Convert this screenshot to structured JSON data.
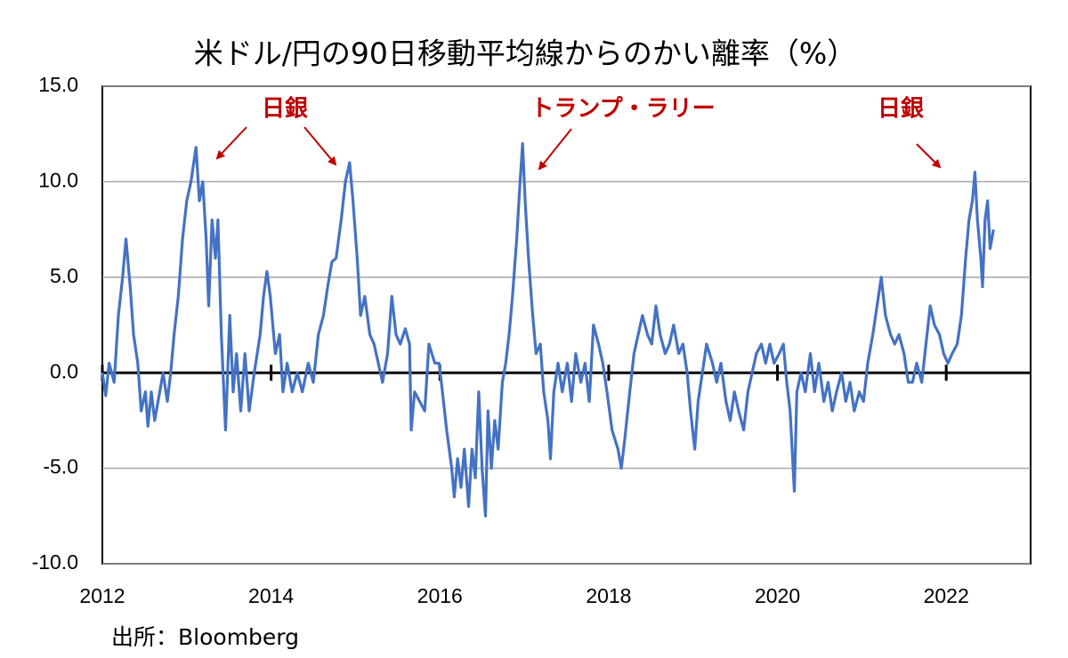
{
  "chart_data": {
    "type": "line",
    "title": "米ドル/円の90日移動平均線からのかい離率（%）",
    "source": "出所：Bloomberg",
    "annotations": [
      "日銀",
      "日銀",
      "トランプ・ラリー"
    ],
    "xlim": [
      2012,
      2023
    ],
    "xticks": [
      2012,
      2014,
      2016,
      2018,
      2020,
      2022
    ],
    "ylim": [
      -10,
      15
    ],
    "yticks": [
      {
        "value": -10,
        "label": "-10.0"
      },
      {
        "value": -5,
        "label": "-5.0"
      },
      {
        "value": 0,
        "label": "0.0"
      },
      {
        "value": 5,
        "label": "5.0"
      },
      {
        "value": 10,
        "label": "10.0"
      },
      {
        "value": 15,
        "label": "15.0"
      }
    ],
    "grid": true,
    "x": [
      2012.0,
      2012.04,
      2012.08,
      2012.14,
      2012.19,
      2012.24,
      2012.28,
      2012.33,
      2012.37,
      2012.42,
      2012.46,
      2012.51,
      2012.54,
      2012.58,
      2012.62,
      2012.66,
      2012.72,
      2012.77,
      2012.81,
      2012.85,
      2012.9,
      2012.95,
      2013.0,
      2013.05,
      2013.11,
      2013.15,
      2013.19,
      2013.23,
      2013.26,
      2013.3,
      2013.34,
      2013.37,
      2013.41,
      2013.46,
      2013.51,
      2013.55,
      2013.59,
      2013.64,
      2013.69,
      2013.74,
      2013.8,
      2013.87,
      2013.91,
      2013.95,
      2013.99,
      2014.05,
      2014.1,
      2014.14,
      2014.19,
      2014.25,
      2014.31,
      2014.37,
      2014.44,
      2014.5,
      2014.56,
      2014.62,
      2014.67,
      2014.72,
      2014.77,
      2014.83,
      2014.88,
      2014.93,
      2014.97,
      2015.02,
      2015.06,
      2015.11,
      2015.17,
      2015.22,
      2015.27,
      2015.32,
      2015.38,
      2015.43,
      2015.48,
      2015.53,
      2015.59,
      2015.64,
      2015.66,
      2015.7,
      2015.76,
      2015.82,
      2015.87,
      2015.94,
      2015.99,
      2016.03,
      2016.08,
      2016.14,
      2016.17,
      2016.21,
      2016.25,
      2016.29,
      2016.34,
      2016.38,
      2016.42,
      2016.46,
      2016.5,
      2016.54,
      2016.57,
      2016.61,
      2016.65,
      2016.69,
      2016.74,
      2016.78,
      2016.82,
      2016.86,
      2016.91,
      2016.95,
      2016.98,
      2017.01,
      2017.05,
      2017.1,
      2017.14,
      2017.19,
      2017.23,
      2017.28,
      2017.31,
      2017.35,
      2017.4,
      2017.45,
      2017.51,
      2017.56,
      2017.61,
      2017.67,
      2017.72,
      2017.77,
      2017.82,
      2017.88,
      2017.93,
      2017.98,
      2018.04,
      2018.11,
      2018.15,
      2018.19,
      2018.25,
      2018.3,
      2018.35,
      2018.4,
      2018.46,
      2018.51,
      2018.56,
      2018.61,
      2018.67,
      2018.72,
      2018.77,
      2018.83,
      2018.88,
      2018.93,
      2018.97,
      2019.02,
      2019.06,
      2019.11,
      2019.16,
      2019.23,
      2019.28,
      2019.33,
      2019.39,
      2019.44,
      2019.49,
      2019.54,
      2019.6,
      2019.65,
      2019.7,
      2019.75,
      2019.81,
      2019.86,
      2019.91,
      2019.96,
      2020.02,
      2020.07,
      2020.11,
      2020.15,
      2020.2,
      2020.23,
      2020.28,
      2020.33,
      2020.39,
      2020.44,
      2020.49,
      2020.55,
      2020.6,
      2020.65,
      2020.7,
      2020.76,
      2020.81,
      2020.86,
      2020.91,
      2020.97,
      2021.02,
      2021.07,
      2021.13,
      2021.18,
      2021.23,
      2021.28,
      2021.34,
      2021.39,
      2021.44,
      2021.5,
      2021.55,
      2021.6,
      2021.65,
      2021.71,
      2021.76,
      2021.81,
      2021.86,
      2021.92,
      2021.97,
      2022.02,
      2022.07,
      2022.13,
      2022.18,
      2022.23,
      2022.27,
      2022.31,
      2022.34,
      2022.37,
      2022.41,
      2022.43,
      2022.46,
      2022.49,
      2022.52,
      2022.56
    ],
    "series": [
      {
        "name": "かい離率",
        "color": "#4472c4",
        "values": [
          0,
          -1.2,
          0.5,
          -0.5,
          3,
          5,
          7,
          4.5,
          2,
          0.5,
          -2,
          -1,
          -2.8,
          -1,
          -2.5,
          -1.5,
          0,
          -1.5,
          0,
          2,
          4,
          7,
          9,
          10,
          11.8,
          9,
          10,
          7,
          3.5,
          8,
          6,
          8,
          2,
          -3,
          3,
          -1,
          1,
          -2,
          1,
          -2,
          0,
          2,
          4,
          5.3,
          4,
          1,
          2,
          -1,
          0.5,
          -1,
          0,
          -1,
          0.5,
          -0.5,
          2,
          3,
          4.5,
          5.8,
          6,
          8,
          10,
          11,
          9,
          6,
          3,
          4,
          2,
          1.5,
          0.5,
          -0.5,
          1,
          4,
          2,
          1.5,
          2.3,
          1.5,
          -3,
          -1,
          -1.5,
          -2,
          1.5,
          0.5,
          0.5,
          -1,
          -3,
          -5,
          -6.5,
          -4.5,
          -6,
          -4,
          -7,
          -4,
          -5.5,
          -1,
          -5,
          -7.5,
          -2,
          -5,
          -2.5,
          -4,
          -0.5,
          0.5,
          2,
          4,
          7,
          10,
          12,
          9,
          6,
          3,
          1,
          1.5,
          -1,
          -2.5,
          -4.5,
          -1,
          0.5,
          -1,
          0.5,
          -1.5,
          1,
          -0.5,
          0.5,
          -1.5,
          2.5,
          1.5,
          0.5,
          -1,
          -3,
          -4,
          -5,
          -3.5,
          -1,
          1,
          2,
          3,
          2,
          1.5,
          3.5,
          2,
          1,
          1.5,
          2.5,
          1,
          1.5,
          0,
          -2,
          -4,
          -1.5,
          0,
          1.5,
          0.5,
          -0.5,
          0.5,
          -1.5,
          -2.5,
          -1,
          -2,
          -3,
          -1,
          0,
          1,
          1.5,
          0.5,
          1.5,
          0.5,
          1,
          1.5,
          -0.5,
          -2,
          -6.2,
          -1,
          0,
          -1,
          1,
          -1,
          0.5,
          -1.5,
          -0.5,
          -2,
          -1,
          0,
          -1.5,
          -0.5,
          -2,
          -1,
          -1.5,
          0.5,
          2,
          3.5,
          5,
          3,
          2,
          1.5,
          2,
          1,
          -0.5,
          -0.5,
          0.5,
          -0.5,
          1.5,
          3.5,
          2.5,
          2,
          1,
          0.5,
          1,
          1.5,
          3,
          6,
          8,
          9,
          10.5,
          8,
          6,
          4.5,
          8,
          9,
          6.5,
          7.5
        ]
      }
    ]
  }
}
